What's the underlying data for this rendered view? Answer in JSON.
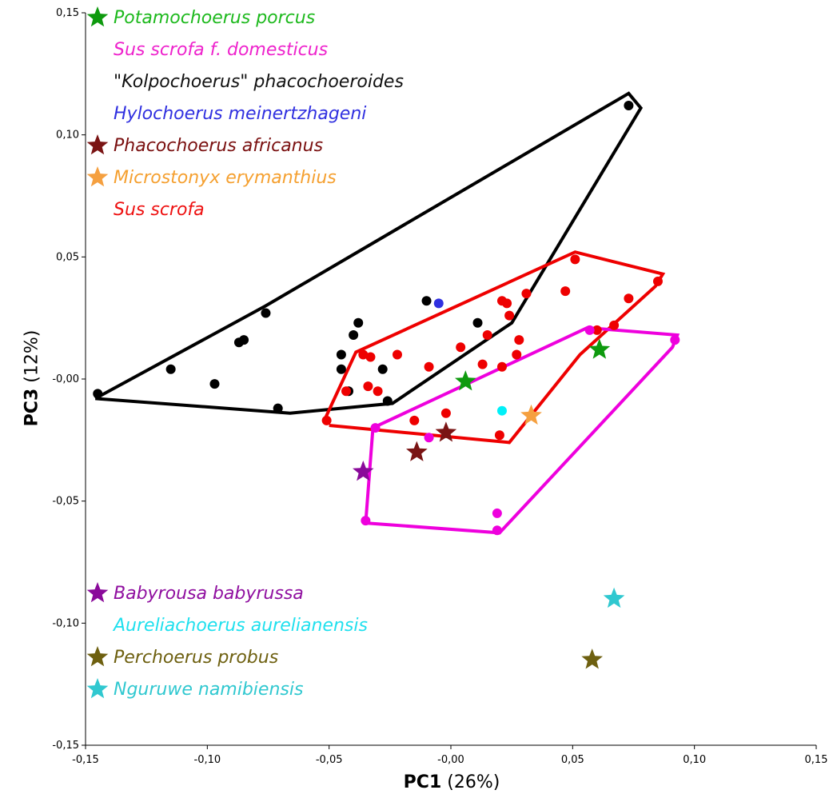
{
  "chart_data": {
    "type": "scatter",
    "xlabel": "PC1",
    "xlabel_suffix": "(26%)",
    "ylabel": "PC3",
    "ylabel_suffix": "(12%)",
    "xlim": [
      -0.15,
      0.15
    ],
    "ylim": [
      -0.15,
      0.15
    ],
    "xticks": [
      -0.15,
      -0.1,
      -0.05,
      0,
      0.05,
      0.1,
      0.15
    ],
    "xtick_labels": [
      "-0,15",
      "-0,10",
      "-0,05",
      "-0,00",
      "0,05",
      "0,10",
      "0,15"
    ],
    "yticks": [
      0.15,
      0.1,
      0.05,
      0,
      -0.05,
      -0.1,
      -0.15
    ],
    "ytick_labels": [
      "0,15",
      "0,10",
      "0,05",
      "-0,00",
      "-0,05",
      "-0,10",
      "-0,15"
    ],
    "grid": false,
    "legend": {
      "placement": "top-left and bottom-left",
      "top": [
        {
          "name": "Potamochoerus porcus",
          "color": "#1db91d",
          "marker": "star",
          "star_color": "#0e9a0e"
        },
        {
          "name": "Sus scrofa f. domesticus",
          "color": "#ee22cc",
          "marker": "none"
        },
        {
          "name": "\"Kolpochoerus\" phacochoeroides",
          "color": "#111111",
          "marker": "none"
        },
        {
          "name": "Hylochoerus meinertzhageni",
          "color": "#3030e0",
          "marker": "none"
        },
        {
          "name": "Phacochoerus africanus",
          "color": "#7a1010",
          "marker": "star",
          "star_color": "#7a1414"
        },
        {
          "name": "Microstonyx erymanthius",
          "color": "#f5a030",
          "marker": "star",
          "star_color": "#f5a040"
        },
        {
          "name": "Sus scrofa",
          "color": "#ee1111",
          "marker": "none"
        }
      ],
      "bottom": [
        {
          "name": "Babyrousa babyrussa",
          "color": "#9010a0",
          "marker": "star",
          "star_color": "#8a0a9a"
        },
        {
          "name": "Aureliachoerus aurelianensis",
          "color": "#20e0ee",
          "marker": "none"
        },
        {
          "name": "Perchoerus probus",
          "color": "#6e6010",
          "marker": "star",
          "star_color": "#6e6010"
        },
        {
          "name": "Nguruwe namibiensis",
          "color": "#30c8d0",
          "marker": "star",
          "star_color": "#30c8d0"
        }
      ]
    },
    "series": [
      {
        "name": "\"Kolpochoerus\" phacochoeroides",
        "color": "#000000",
        "marker": "circle",
        "points": [
          [
            -0.145,
            -0.006
          ],
          [
            -0.115,
            0.004
          ],
          [
            -0.097,
            -0.002
          ],
          [
            -0.087,
            0.015
          ],
          [
            -0.085,
            0.016
          ],
          [
            -0.076,
            0.027
          ],
          [
            -0.071,
            -0.012
          ],
          [
            -0.045,
            0.01
          ],
          [
            -0.045,
            0.004
          ],
          [
            -0.042,
            -0.005
          ],
          [
            -0.04,
            0.018
          ],
          [
            -0.038,
            0.023
          ],
          [
            -0.028,
            0.004
          ],
          [
            -0.026,
            -0.009
          ],
          [
            -0.01,
            0.032
          ],
          [
            0.011,
            0.023
          ],
          [
            0.073,
            0.112
          ]
        ],
        "hull": [
          [
            -0.146,
            -0.008
          ],
          [
            -0.076,
            0.03
          ],
          [
            0.073,
            0.117
          ],
          [
            0.078,
            0.111
          ],
          [
            0.025,
            0.023
          ],
          [
            -0.024,
            -0.01
          ],
          [
            -0.066,
            -0.014
          ],
          [
            -0.146,
            -0.008
          ]
        ]
      },
      {
        "name": "Sus scrofa",
        "color": "#ee0000",
        "marker": "circle",
        "points": [
          [
            -0.051,
            -0.017
          ],
          [
            -0.043,
            -0.005
          ],
          [
            -0.036,
            0.01
          ],
          [
            -0.034,
            -0.003
          ],
          [
            -0.033,
            0.009
          ],
          [
            -0.03,
            -0.005
          ],
          [
            -0.022,
            0.01
          ],
          [
            -0.015,
            -0.017
          ],
          [
            -0.009,
            0.005
          ],
          [
            -0.002,
            -0.014
          ],
          [
            0.004,
            0.013
          ],
          [
            0.013,
            0.006
          ],
          [
            0.015,
            0.018
          ],
          [
            0.02,
            -0.023
          ],
          [
            0.021,
            0.005
          ],
          [
            0.021,
            0.032
          ],
          [
            0.023,
            0.031
          ],
          [
            0.024,
            0.026
          ],
          [
            0.027,
            0.01
          ],
          [
            0.028,
            0.016
          ],
          [
            0.031,
            0.035
          ],
          [
            0.047,
            0.036
          ],
          [
            0.051,
            0.049
          ],
          [
            0.06,
            0.02
          ],
          [
            0.067,
            0.022
          ],
          [
            0.073,
            0.033
          ],
          [
            0.085,
            0.04
          ]
        ],
        "hull": [
          [
            -0.052,
            -0.017
          ],
          [
            -0.039,
            0.011
          ],
          [
            0.051,
            0.052
          ],
          [
            0.087,
            0.043
          ],
          [
            0.084,
            0.038
          ],
          [
            0.053,
            0.01
          ],
          [
            0.024,
            -0.026
          ],
          [
            -0.05,
            -0.019
          ]
        ]
      },
      {
        "name": "Sus scrofa f. domesticus",
        "color": "#ee00dd",
        "marker": "circle",
        "points": [
          [
            -0.035,
            -0.058
          ],
          [
            -0.031,
            -0.02
          ],
          [
            -0.009,
            -0.024
          ],
          [
            0.019,
            -0.055
          ],
          [
            0.019,
            -0.062
          ],
          [
            0.057,
            0.02
          ],
          [
            0.092,
            0.016
          ]
        ],
        "hull": [
          [
            -0.032,
            -0.02
          ],
          [
            0.056,
            0.021
          ],
          [
            0.093,
            0.018
          ],
          [
            0.091,
            0.013
          ],
          [
            0.02,
            -0.063
          ],
          [
            -0.035,
            -0.059
          ],
          [
            -0.032,
            -0.02
          ]
        ]
      },
      {
        "name": "Hylochoerus meinertzhageni",
        "color": "#3030e0",
        "marker": "circle",
        "points": [
          [
            -0.005,
            0.031
          ]
        ]
      },
      {
        "name": "Aureliachoerus aurelianensis",
        "color": "#00f0f8",
        "marker": "circle",
        "points": [
          [
            0.021,
            -0.013
          ]
        ]
      },
      {
        "name": "Potamochoerus porcus",
        "color": "#0e9a0e",
        "marker": "star",
        "points": [
          [
            0.006,
            -0.001
          ],
          [
            0.061,
            0.012
          ]
        ]
      },
      {
        "name": "Phacochoerus africanus",
        "color": "#7a1414",
        "marker": "star",
        "points": [
          [
            -0.014,
            -0.03
          ],
          [
            -0.002,
            -0.022
          ]
        ]
      },
      {
        "name": "Microstonyx erymanthius",
        "color": "#f5a040",
        "marker": "star",
        "points": [
          [
            0.033,
            -0.015
          ]
        ]
      },
      {
        "name": "Babyrousa babyrussa",
        "color": "#8a0a9a",
        "marker": "star",
        "points": [
          [
            -0.036,
            -0.038
          ]
        ]
      },
      {
        "name": "Nguruwe namibiensis",
        "color": "#30c8d0",
        "marker": "star",
        "points": [
          [
            0.067,
            -0.09
          ]
        ]
      },
      {
        "name": "Perchoerus probus",
        "color": "#6e6010",
        "marker": "star",
        "points": [
          [
            0.058,
            -0.115
          ]
        ]
      }
    ]
  }
}
